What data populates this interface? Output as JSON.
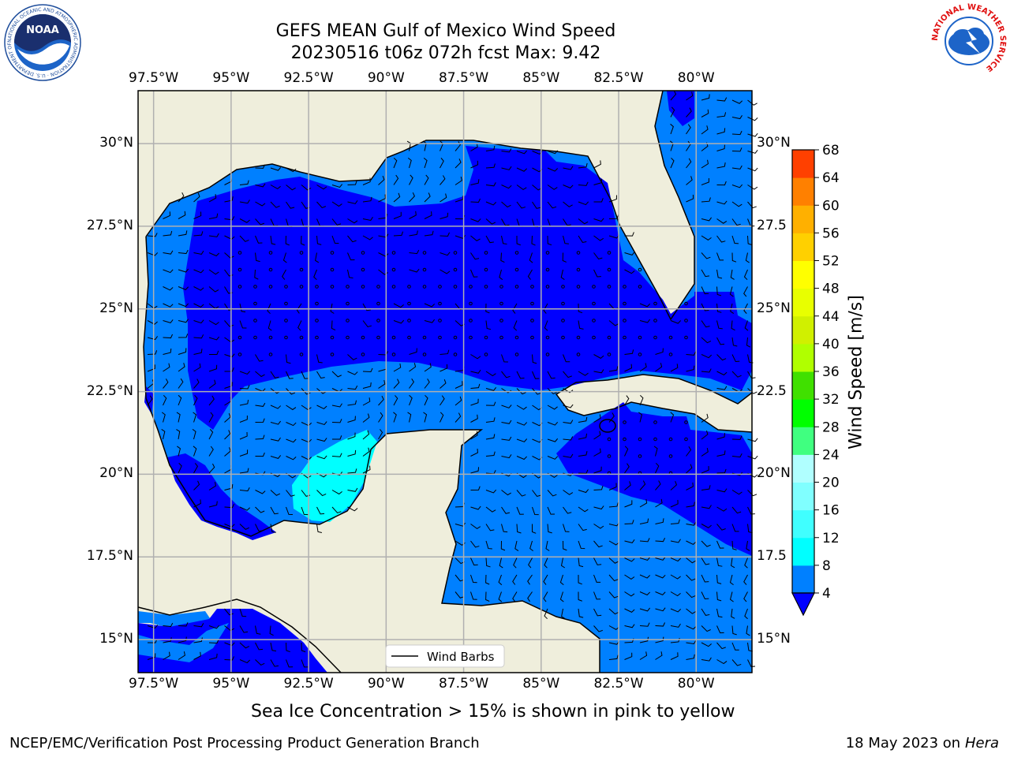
{
  "header": {
    "title_line1": "GEFS MEAN Gulf of Mexico Wind Speed",
    "title_line2": "20230516 t06z 072h fcst   Max: 9.42"
  },
  "logos": {
    "left_name": "NOAA",
    "left_ring_text": "NATIONAL OCEANIC AND ATMOSPHERIC ADMINISTRATION · U.S. DEPARTMENT OF COMMERCE",
    "right_ring_text": "NATIONAL WEATHER SERVICE"
  },
  "map": {
    "lon_ticks": [
      "97.5°W",
      "95°W",
      "92.5°W",
      "90°W",
      "87.5°W",
      "85°W",
      "82.5°W",
      "80°W"
    ],
    "lon_values": [
      -97.5,
      -95,
      -92.5,
      -90,
      -87.5,
      -85,
      -82.5,
      -80
    ],
    "lat_ticks_left": [
      "30°N",
      "27.5°N",
      "25°N",
      "22.5°N",
      "20°N",
      "17.5°N",
      "15°N"
    ],
    "lat_ticks_right": [
      "30°N",
      "27.5",
      "25°N",
      "22.5",
      "20°N",
      "17.5",
      "15°N"
    ],
    "lat_values": [
      30,
      27.5,
      25,
      22.5,
      20,
      17.5,
      15
    ],
    "extent": {
      "lon_min": -98,
      "lon_max": -78.2,
      "lat_min": 14,
      "lat_max": 31.6
    },
    "legend_label": "Wind Barbs",
    "colors": {
      "land": "#efeedc",
      "level4": "#0080ff",
      "level0": "#0000ff",
      "level8": "#00ffff",
      "grid": "#b0b0b0"
    }
  },
  "colorbar": {
    "label": "Wind Speed [m/s]",
    "levels": [
      4,
      8,
      12,
      16,
      20,
      24,
      28,
      32,
      36,
      40,
      44,
      48,
      52,
      56,
      60,
      64,
      68
    ],
    "colors": [
      "#0080ff",
      "#00ffff",
      "#40ffff",
      "#80ffff",
      "#b0ffff",
      "#40ff80",
      "#00ff00",
      "#40e000",
      "#b0ff00",
      "#d0f000",
      "#e8ff00",
      "#ffff00",
      "#ffd000",
      "#ffb000",
      "#ff8000",
      "#ff4000",
      "#ff0000"
    ],
    "under_color": "#0000ff"
  },
  "footer": {
    "subtitle": "Sea Ice Concentration > 15% is shown in pink to yellow",
    "credit": "NCEP/EMC/Verification Post Processing Product Generation Branch",
    "date_text": "18 May 2023 on",
    "machine": "Hera"
  }
}
